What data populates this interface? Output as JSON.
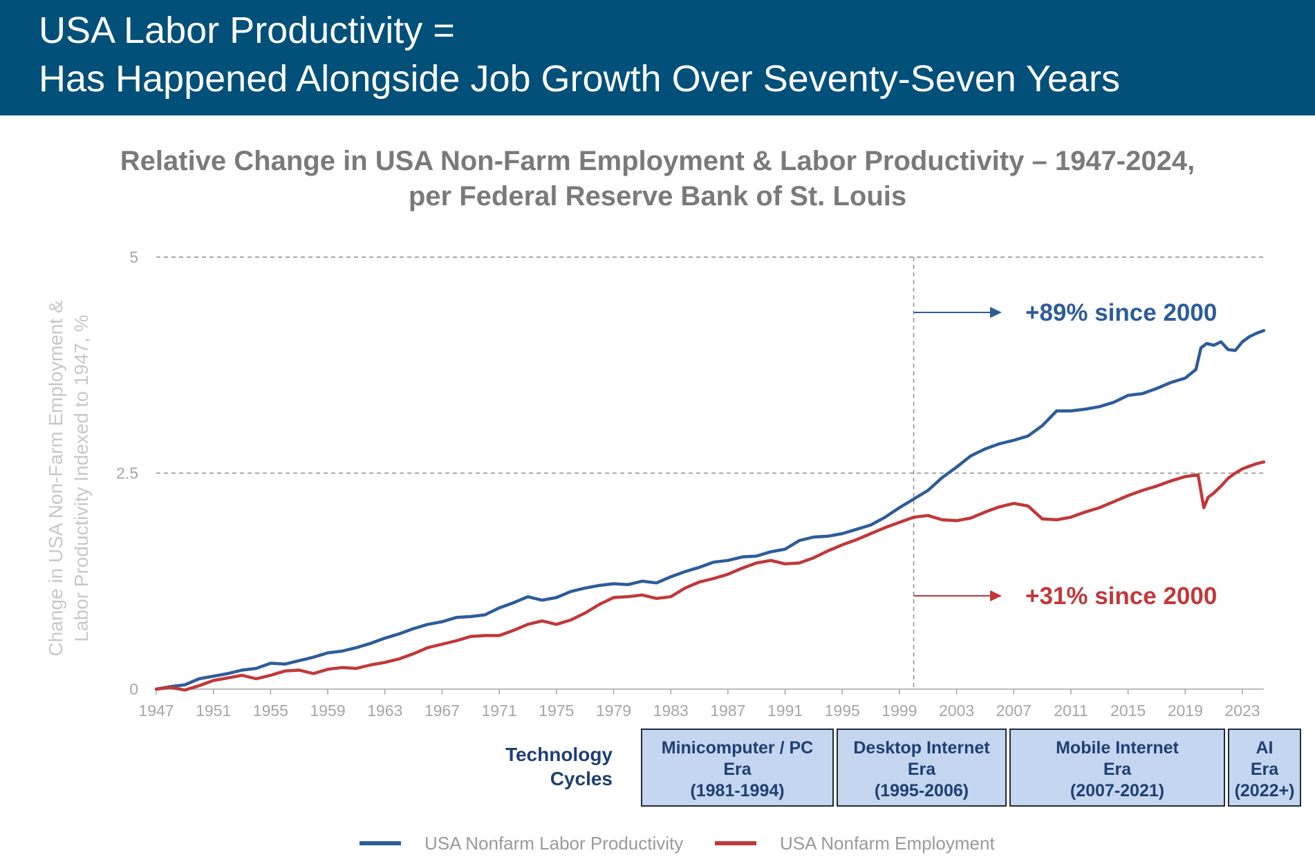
{
  "header": {
    "line1": "USA Labor Productivity =",
    "line2": "Has Happened Alongside Job Growth Over Seventy-Seven Years"
  },
  "chart_title": {
    "line1": "Relative Change in USA Non-Farm Employment & Labor Productivity – 1947-2024,",
    "line2": "per Federal Reserve Bank of St. Louis"
  },
  "colors": {
    "header_bg": "#00507a",
    "productivity": "#2e5c99",
    "employment": "#c0393b",
    "era_box": "#c5d6f0",
    "era_text": "#1f3f73"
  },
  "chart_data": {
    "type": "line",
    "ylabel_line1": "Change in USA Non-Farm Employment &",
    "ylabel_line2": "Labor Productivity Indexed to 1947, %",
    "ylim": [
      0,
      5
    ],
    "xlim": [
      1947,
      2024.5
    ],
    "y_ticks": [
      "0",
      "2.5",
      "5"
    ],
    "y_tick_values": [
      0,
      2.5,
      5
    ],
    "x_ticks": [
      "1947",
      "1951",
      "1955",
      "1959",
      "1963",
      "1967",
      "1971",
      "1975",
      "1979",
      "1983",
      "1987",
      "1991",
      "1995",
      "1999",
      "2003",
      "2007",
      "2011",
      "2015",
      "2019",
      "2023"
    ],
    "grid": "horizontal dashed at 2.5 and 5",
    "reference_line_x": 2000,
    "series": [
      {
        "name": "USA Nonfarm Labor Productivity",
        "color": "#2e5c99",
        "points": [
          [
            1947,
            0
          ],
          [
            1948,
            0.03
          ],
          [
            1949,
            0.05
          ],
          [
            1950,
            0.12
          ],
          [
            1951,
            0.15
          ],
          [
            1952,
            0.18
          ],
          [
            1953,
            0.22
          ],
          [
            1954,
            0.24
          ],
          [
            1955,
            0.3
          ],
          [
            1956,
            0.29
          ],
          [
            1957,
            0.33
          ],
          [
            1958,
            0.37
          ],
          [
            1959,
            0.42
          ],
          [
            1960,
            0.44
          ],
          [
            1961,
            0.48
          ],
          [
            1962,
            0.53
          ],
          [
            1963,
            0.59
          ],
          [
            1964,
            0.64
          ],
          [
            1965,
            0.7
          ],
          [
            1966,
            0.75
          ],
          [
            1967,
            0.78
          ],
          [
            1968,
            0.83
          ],
          [
            1969,
            0.84
          ],
          [
            1970,
            0.86
          ],
          [
            1971,
            0.94
          ],
          [
            1972,
            1.0
          ],
          [
            1973,
            1.07
          ],
          [
            1974,
            1.03
          ],
          [
            1975,
            1.06
          ],
          [
            1976,
            1.13
          ],
          [
            1977,
            1.17
          ],
          [
            1978,
            1.2
          ],
          [
            1979,
            1.22
          ],
          [
            1980,
            1.21
          ],
          [
            1981,
            1.25
          ],
          [
            1982,
            1.23
          ],
          [
            1983,
            1.3
          ],
          [
            1984,
            1.36
          ],
          [
            1985,
            1.41
          ],
          [
            1986,
            1.47
          ],
          [
            1987,
            1.49
          ],
          [
            1988,
            1.53
          ],
          [
            1989,
            1.54
          ],
          [
            1990,
            1.59
          ],
          [
            1991,
            1.62
          ],
          [
            1992,
            1.72
          ],
          [
            1993,
            1.76
          ],
          [
            1994,
            1.77
          ],
          [
            1995,
            1.8
          ],
          [
            1996,
            1.85
          ],
          [
            1997,
            1.9
          ],
          [
            1998,
            1.99
          ],
          [
            1999,
            2.1
          ],
          [
            2000,
            2.2
          ],
          [
            2001,
            2.3
          ],
          [
            2002,
            2.45
          ],
          [
            2003,
            2.57
          ],
          [
            2004,
            2.7
          ],
          [
            2005,
            2.78
          ],
          [
            2006,
            2.84
          ],
          [
            2007,
            2.88
          ],
          [
            2008,
            2.93
          ],
          [
            2009,
            3.05
          ],
          [
            2010,
            3.22
          ],
          [
            2011,
            3.22
          ],
          [
            2012,
            3.24
          ],
          [
            2013,
            3.27
          ],
          [
            2014,
            3.32
          ],
          [
            2015,
            3.4
          ],
          [
            2016,
            3.42
          ],
          [
            2017,
            3.48
          ],
          [
            2018,
            3.55
          ],
          [
            2019,
            3.6
          ],
          [
            2019.75,
            3.7
          ],
          [
            2020.1,
            3.95
          ],
          [
            2020.5,
            4.0
          ],
          [
            2021,
            3.98
          ],
          [
            2021.5,
            4.02
          ],
          [
            2022,
            3.93
          ],
          [
            2022.5,
            3.92
          ],
          [
            2023,
            4.02
          ],
          [
            2023.5,
            4.08
          ],
          [
            2024,
            4.12
          ],
          [
            2024.5,
            4.15
          ]
        ]
      },
      {
        "name": "USA Nonfarm Employment",
        "color": "#c0393b",
        "points": [
          [
            1947,
            0
          ],
          [
            1948,
            0.02
          ],
          [
            1949,
            -0.01
          ],
          [
            1950,
            0.04
          ],
          [
            1951,
            0.1
          ],
          [
            1952,
            0.13
          ],
          [
            1953,
            0.16
          ],
          [
            1954,
            0.12
          ],
          [
            1955,
            0.16
          ],
          [
            1956,
            0.21
          ],
          [
            1957,
            0.22
          ],
          [
            1958,
            0.18
          ],
          [
            1959,
            0.23
          ],
          [
            1960,
            0.25
          ],
          [
            1961,
            0.24
          ],
          [
            1962,
            0.28
          ],
          [
            1963,
            0.31
          ],
          [
            1964,
            0.35
          ],
          [
            1965,
            0.41
          ],
          [
            1966,
            0.48
          ],
          [
            1967,
            0.52
          ],
          [
            1968,
            0.56
          ],
          [
            1969,
            0.61
          ],
          [
            1970,
            0.62
          ],
          [
            1971,
            0.62
          ],
          [
            1972,
            0.68
          ],
          [
            1973,
            0.75
          ],
          [
            1974,
            0.79
          ],
          [
            1975,
            0.75
          ],
          [
            1976,
            0.8
          ],
          [
            1977,
            0.88
          ],
          [
            1978,
            0.98
          ],
          [
            1979,
            1.06
          ],
          [
            1980,
            1.07
          ],
          [
            1981,
            1.09
          ],
          [
            1982,
            1.05
          ],
          [
            1983,
            1.07
          ],
          [
            1984,
            1.17
          ],
          [
            1985,
            1.24
          ],
          [
            1986,
            1.28
          ],
          [
            1987,
            1.33
          ],
          [
            1988,
            1.4
          ],
          [
            1989,
            1.46
          ],
          [
            1990,
            1.49
          ],
          [
            1991,
            1.45
          ],
          [
            1992,
            1.46
          ],
          [
            1993,
            1.52
          ],
          [
            1994,
            1.6
          ],
          [
            1995,
            1.67
          ],
          [
            1996,
            1.73
          ],
          [
            1997,
            1.8
          ],
          [
            1998,
            1.87
          ],
          [
            1999,
            1.93
          ],
          [
            2000,
            1.99
          ],
          [
            2001,
            2.01
          ],
          [
            2002,
            1.96
          ],
          [
            2003,
            1.95
          ],
          [
            2004,
            1.98
          ],
          [
            2005,
            2.05
          ],
          [
            2006,
            2.11
          ],
          [
            2007,
            2.15
          ],
          [
            2008,
            2.12
          ],
          [
            2009,
            1.97
          ],
          [
            2010,
            1.96
          ],
          [
            2011,
            1.99
          ],
          [
            2012,
            2.05
          ],
          [
            2013,
            2.1
          ],
          [
            2014,
            2.17
          ],
          [
            2015,
            2.24
          ],
          [
            2016,
            2.3
          ],
          [
            2017,
            2.35
          ],
          [
            2018,
            2.41
          ],
          [
            2019,
            2.46
          ],
          [
            2019.9,
            2.48
          ],
          [
            2020.3,
            2.1
          ],
          [
            2020.6,
            2.22
          ],
          [
            2021,
            2.27
          ],
          [
            2021.5,
            2.35
          ],
          [
            2022,
            2.44
          ],
          [
            2022.5,
            2.5
          ],
          [
            2023,
            2.55
          ],
          [
            2023.5,
            2.58
          ],
          [
            2024,
            2.61
          ],
          [
            2024.5,
            2.63
          ]
        ]
      }
    ],
    "annotations": [
      {
        "text": "+89% since 2000",
        "color": "#2e5c99",
        "series": "USA Nonfarm Labor Productivity"
      },
      {
        "text": "+31% since 2000",
        "color": "#c0393b",
        "series": "USA Nonfarm Employment"
      }
    ]
  },
  "technology_cycles": {
    "title_line1": "Technology",
    "title_line2": "Cycles",
    "eras": [
      {
        "line1": "Minicomputer / PC",
        "line2": "Era",
        "line3": "(1981-1994)"
      },
      {
        "line1": "Desktop Internet",
        "line2": "Era",
        "line3": "(1995-2006)"
      },
      {
        "line1": "Mobile Internet",
        "line2": "Era",
        "line3": "(2007-2021)"
      },
      {
        "line1": "AI",
        "line2": "Era",
        "line3": "(2022+)"
      }
    ]
  },
  "legend": {
    "items": [
      {
        "label": "USA Nonfarm Labor Productivity",
        "color": "#2e5c99"
      },
      {
        "label": "USA Nonfarm Employment",
        "color": "#c0393b"
      }
    ]
  }
}
